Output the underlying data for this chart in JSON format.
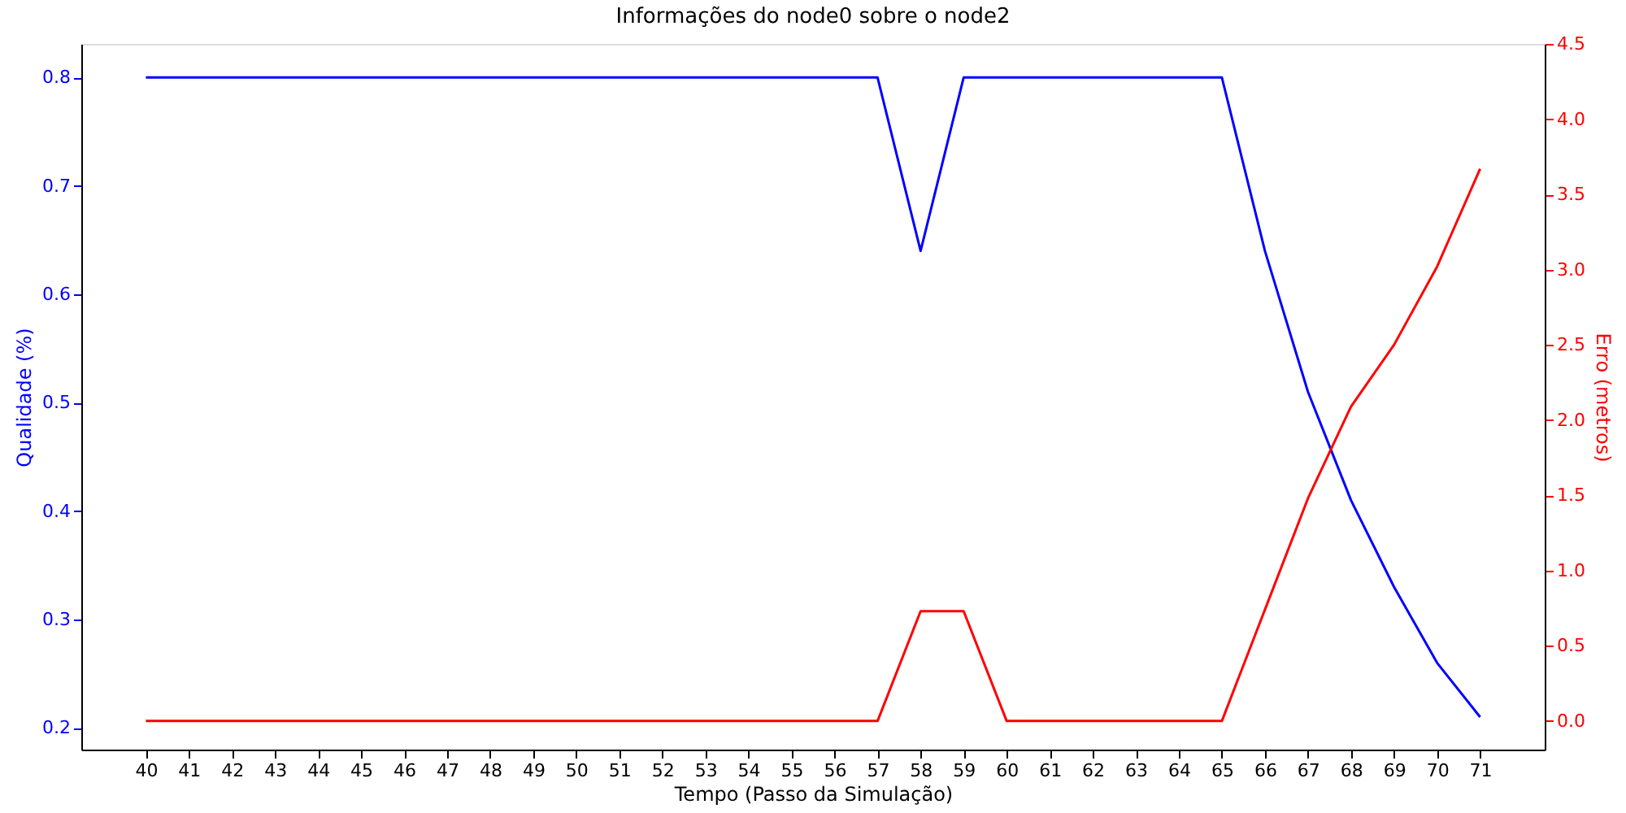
{
  "chart_data": {
    "type": "line",
    "title": "Informações do node0 sobre o node2",
    "xlabel": "Tempo (Passo da Simulação)",
    "ylabel": "Qualidade (%)",
    "y2label": "Erro (metros)",
    "x": [
      40,
      41,
      42,
      43,
      44,
      45,
      46,
      47,
      48,
      49,
      50,
      51,
      52,
      53,
      54,
      55,
      56,
      57,
      58,
      59,
      60,
      61,
      62,
      63,
      64,
      65,
      66,
      67,
      68,
      69,
      70,
      71
    ],
    "xlim": [
      38.5,
      72.5
    ],
    "xticks": [
      40,
      41,
      42,
      43,
      44,
      45,
      46,
      47,
      48,
      49,
      50,
      51,
      52,
      53,
      54,
      55,
      56,
      57,
      58,
      59,
      60,
      61,
      62,
      63,
      64,
      65,
      66,
      67,
      68,
      69,
      70,
      71
    ],
    "ylim": [
      0.18,
      0.831
    ],
    "yticks": [
      0.2,
      0.3,
      0.4,
      0.5,
      0.6,
      0.7,
      0.8
    ],
    "y2lim": [
      -0.19,
      4.5
    ],
    "y2ticks": [
      {
        "value": 0,
        "label": "0.0"
      },
      0.5,
      {
        "value": 1,
        "label": "1.0"
      },
      1.5,
      {
        "value": 2,
        "label": "2.0"
      },
      2.5,
      {
        "value": 3,
        "label": "3.0"
      },
      3.5,
      {
        "value": 4,
        "label": "4.0"
      },
      4.5
    ],
    "series": [
      {
        "color": "#0000ff",
        "values": [
          0.8,
          0.8,
          0.8,
          0.8,
          0.8,
          0.8,
          0.8,
          0.8,
          0.8,
          0.8,
          0.8,
          0.8,
          0.8,
          0.8,
          0.8,
          0.8,
          0.8,
          0.8,
          0.64,
          0.8,
          0.8,
          0.8,
          0.8,
          0.8,
          0.8,
          0.8,
          0.64,
          0.51,
          0.41,
          0.33,
          0.26,
          0.21
        ]
      },
      {
        "color": "#ff0000",
        "axis": "y2",
        "values": [
          0,
          0,
          0,
          0,
          0,
          0,
          0,
          0,
          0,
          0,
          0,
          0,
          0,
          0,
          0,
          0,
          0,
          0,
          0.73,
          0.73,
          0,
          0,
          0,
          0,
          0,
          0,
          0.74,
          1.48,
          2.09,
          2.5,
          3.02,
          3.67
        ]
      }
    ],
    "grid": false,
    "marker": "none",
    "line_style": "solid"
  }
}
